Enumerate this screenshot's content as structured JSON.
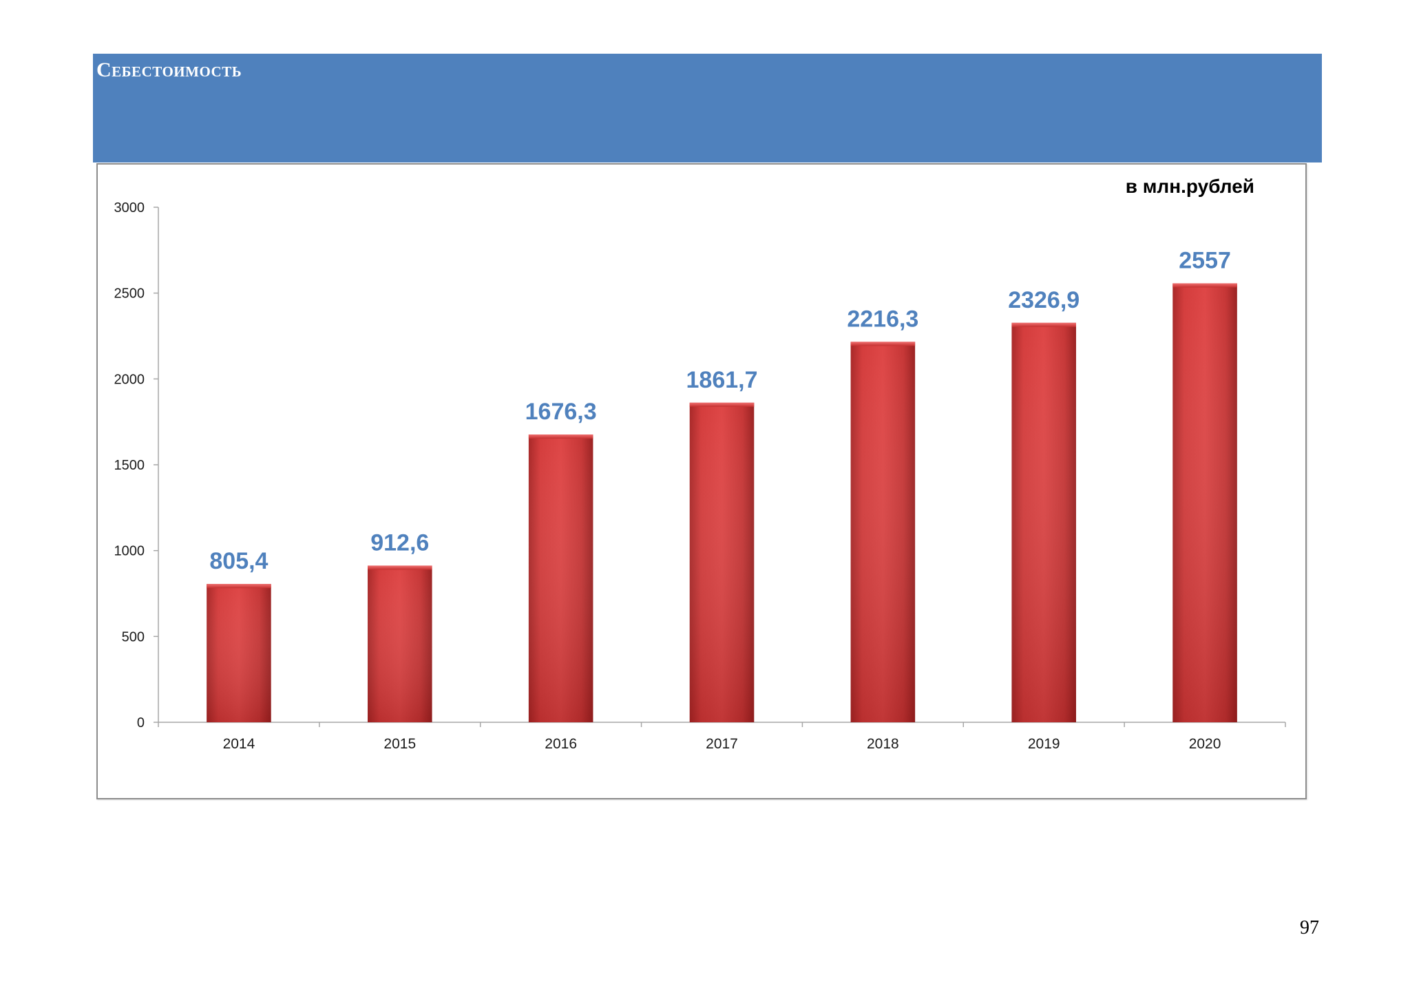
{
  "header": {
    "title": "Себестоимость"
  },
  "page": {
    "number": "97"
  },
  "colors": {
    "header_band": "#4f81bd",
    "bar_fill": "#c0392b",
    "bar_top": "#e05050",
    "data_label": "#4f81bd",
    "axis": "#a6a6a6"
  },
  "chart_data": {
    "type": "bar",
    "title": "",
    "unit_label": "в млн.рублей",
    "xlabel": "",
    "ylabel": "",
    "categories": [
      "2014",
      "2015",
      "2016",
      "2017",
      "2018",
      "2019",
      "2020"
    ],
    "values": [
      805.4,
      912.6,
      1676.3,
      1861.7,
      2216.3,
      2326.9,
      2557
    ],
    "value_labels": [
      "805,4",
      "912,6",
      "1676,3",
      "1861,7",
      "2216,3",
      "2326,9",
      "2557"
    ],
    "ylim": [
      0,
      3000
    ],
    "yticks": [
      "0",
      "500",
      "1000",
      "1500",
      "2000",
      "2500",
      "3000"
    ],
    "grid": false,
    "legend": "none"
  }
}
